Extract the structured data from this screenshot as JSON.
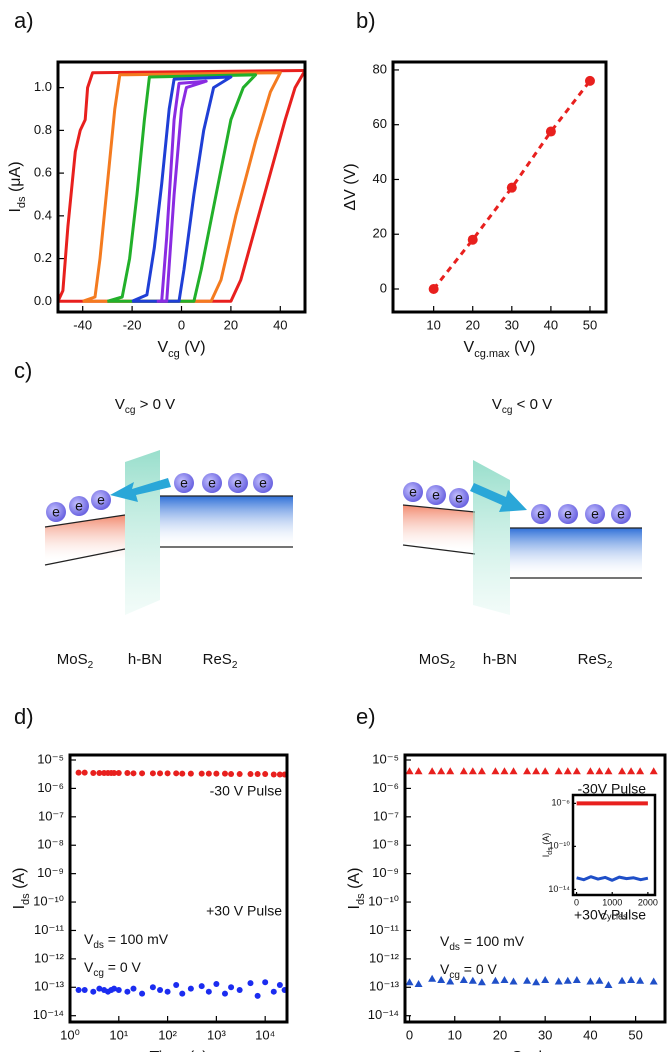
{
  "chart_data": [
    {
      "type": "line",
      "panel_label": "a)",
      "xlabel": {
        "main": "V",
        "sub": "cg",
        "rest": " (V)"
      },
      "ylabel": {
        "main": "I",
        "sub": "ds",
        "rest": " (μA)"
      },
      "xlim": [
        -50,
        50
      ],
      "xticks": [
        -40,
        -20,
        0,
        20,
        40
      ],
      "ylim": [
        -0.05,
        1.12
      ],
      "yticks": [
        {
          "value": 0,
          "label": "0.0"
        },
        0.2,
        0.4,
        0.6,
        0.8,
        {
          "value": 1,
          "label": "1.0"
        }
      ],
      "series": [
        {
          "color": "#e8201e",
          "x": [
            -50,
            20,
            24,
            30,
            36,
            42,
            46,
            50,
            -36,
            -38,
            -39,
            -41,
            -43,
            -46,
            -48,
            -50
          ],
          "values": [
            0,
            0,
            0.1,
            0.35,
            0.6,
            0.85,
            1.0,
            1.08,
            1.07,
            1.0,
            0.85,
            0.8,
            0.7,
            0.35,
            0.05,
            0
          ]
        },
        {
          "color": "#f47b20",
          "x": [
            -40,
            12,
            16,
            22,
            30,
            36,
            40,
            -25,
            -27,
            -30,
            -33,
            -35,
            -40
          ],
          "values": [
            0,
            0,
            0.1,
            0.4,
            0.75,
            0.98,
            1.07,
            1.06,
            0.9,
            0.55,
            0.2,
            0.02,
            0
          ]
        },
        {
          "color": "#22b02a",
          "x": [
            -30,
            5,
            8,
            14,
            20,
            25,
            30,
            -13,
            -15,
            -18,
            -21,
            -24,
            -30
          ],
          "values": [
            0,
            0,
            0.15,
            0.5,
            0.85,
            1.0,
            1.06,
            1.05,
            0.85,
            0.5,
            0.2,
            0.02,
            0
          ]
        },
        {
          "color": "#1f3fd6",
          "x": [
            -20,
            -1,
            1,
            5,
            9,
            13,
            20,
            -3,
            -5,
            -8,
            -11,
            -14,
            -20
          ],
          "values": [
            0,
            0,
            0.15,
            0.5,
            0.8,
            1.0,
            1.05,
            1.04,
            0.9,
            0.55,
            0.25,
            0.03,
            0
          ]
        },
        {
          "color": "#8a2be2",
          "x": [
            -10,
            -6,
            -3,
            0,
            2,
            10,
            -1,
            -3,
            -6,
            -8,
            -10
          ],
          "values": [
            0,
            0,
            0.5,
            0.9,
            1.0,
            1.03,
            1.02,
            0.85,
            0.3,
            0,
            0
          ]
        }
      ]
    },
    {
      "type": "scatter",
      "panel_label": "b)",
      "xlabel": {
        "main": "V",
        "sub": "cg.max",
        "rest": " (V)"
      },
      "ylabel": "ΔV (V)",
      "xlim": [
        -0.4,
        54.1
      ],
      "xticks": [
        10,
        20,
        30,
        40,
        50
      ],
      "ylim": [
        -8.4,
        82.9
      ],
      "yticks": [
        0,
        20,
        40,
        60,
        80
      ],
      "series": [
        {
          "color": "#e8201e",
          "line_style": "dashed",
          "marker": "circle",
          "x": [
            10,
            20,
            30,
            40,
            50
          ],
          "values": [
            0,
            18,
            37,
            57.5,
            76
          ]
        }
      ]
    },
    {
      "type": "scatter",
      "panel_label": "d)",
      "log_x": true,
      "log_y": true,
      "xlabel": "Time (s)",
      "ylabel": {
        "main": "I",
        "sub": "ds",
        "rest": " (A)"
      },
      "xlim": [
        1,
        28000
      ],
      "xticks": [
        {
          "value": 1,
          "label": "10⁰"
        },
        {
          "value": 10,
          "label": "10¹"
        },
        {
          "value": 100,
          "label": "10²"
        },
        {
          "value": 1000,
          "label": "10³"
        },
        {
          "value": 10000,
          "label": "10⁴"
        }
      ],
      "ylim": [
        6e-15,
        1.5e-05
      ],
      "yticks": [
        {
          "value": 1e-14,
          "label": "10⁻¹⁴"
        },
        {
          "value": 1e-13,
          "label": "10⁻¹³"
        },
        {
          "value": 1e-12,
          "label": "10⁻¹²"
        },
        {
          "value": 1e-11,
          "label": "10⁻¹¹"
        },
        {
          "value": 1e-10,
          "label": "10⁻¹⁰"
        },
        {
          "value": 1e-09,
          "label": "10⁻⁹"
        },
        {
          "value": 1e-08,
          "label": "10⁻⁸"
        },
        {
          "value": 1e-07,
          "label": "10⁻⁷"
        },
        {
          "value": 1e-06,
          "label": "10⁻⁶"
        },
        {
          "value": 1e-05,
          "label": "10⁻⁵"
        }
      ],
      "series": [
        {
          "color": "#e8201e",
          "marker": "circle",
          "x": [
            1.5,
            2,
            3,
            4,
            5,
            6,
            7,
            8,
            10,
            15,
            20,
            30,
            50,
            70,
            100,
            150,
            200,
            300,
            500,
            700,
            1000,
            1500,
            2000,
            3000,
            5000,
            7000,
            10000,
            15000,
            20000,
            25000
          ],
          "values": [
            3.6e-06,
            3.6e-06,
            3.5e-06,
            3.5e-06,
            3.5e-06,
            3.5e-06,
            3.5e-06,
            3.5e-06,
            3.5e-06,
            3.5e-06,
            3.4e-06,
            3.4e-06,
            3.4e-06,
            3.4e-06,
            3.4e-06,
            3.4e-06,
            3.3e-06,
            3.3e-06,
            3.3e-06,
            3.3e-06,
            3.3e-06,
            3.3e-06,
            3.2e-06,
            3.2e-06,
            3.2e-06,
            3.2e-06,
            3.2e-06,
            3.1e-06,
            3.1e-06,
            3.1e-06
          ]
        },
        {
          "color": "#1b2cf0",
          "marker": "circle",
          "x": [
            1.5,
            2,
            3,
            4,
            5,
            6,
            7,
            8,
            10,
            15,
            20,
            30,
            50,
            70,
            100,
            150,
            200,
            300,
            500,
            700,
            1000,
            1500,
            2000,
            3000,
            5000,
            7000,
            10000,
            15000,
            20000,
            25000
          ],
          "values": [
            8e-14,
            8e-14,
            7e-14,
            9e-14,
            8e-14,
            7e-14,
            8e-14,
            9e-14,
            8e-14,
            7e-14,
            9e-14,
            6e-14,
            1e-13,
            8e-14,
            7e-14,
            1.2e-13,
            6e-14,
            9e-14,
            1.1e-13,
            7e-14,
            1.3e-13,
            6e-14,
            1e-13,
            8e-14,
            1.4e-13,
            5e-14,
            1.5e-13,
            7e-14,
            1.2e-13,
            8e-14
          ]
        }
      ],
      "annotations": [
        {
          "color": "#e8201e",
          "text": "-30 V Pulse"
        },
        {
          "color": "#1b2cf0",
          "text": "+30 V Pulse"
        },
        {
          "color": "#111111",
          "text": {
            "main": "V",
            "sub": "ds",
            "rest": " = 100 mV"
          }
        },
        {
          "color": "#111111",
          "text": {
            "main": "V",
            "sub": "cg",
            "rest": " = 0 V"
          }
        }
      ]
    },
    {
      "type": "scatter",
      "panel_label": "e)",
      "log_y": true,
      "xlabel": "Cycles",
      "ylabel": {
        "main": "I",
        "sub": "ds",
        "rest": " (A)"
      },
      "xlim": [
        -1,
        56.5
      ],
      "xticks": [
        0,
        10,
        20,
        30,
        40,
        50
      ],
      "ylim": [
        6e-15,
        1.5e-05
      ],
      "yticks": [
        {
          "value": 1e-14,
          "label": "10⁻¹⁴"
        },
        {
          "value": 1e-13,
          "label": "10⁻¹³"
        },
        {
          "value": 1e-12,
          "label": "10⁻¹²"
        },
        {
          "value": 1e-11,
          "label": "10⁻¹¹"
        },
        {
          "value": 1e-10,
          "label": "10⁻¹⁰"
        },
        {
          "value": 1e-09,
          "label": "10⁻⁹"
        },
        {
          "value": 1e-08,
          "label": "10⁻⁸"
        },
        {
          "value": 1e-07,
          "label": "10⁻⁷"
        },
        {
          "value": 1e-06,
          "label": "10⁻⁶"
        },
        {
          "value": 1e-05,
          "label": "10⁻⁵"
        }
      ],
      "series": [
        {
          "color": "#e8201e",
          "marker": "triangle",
          "x": [
            0,
            2,
            5,
            7,
            9,
            12,
            14,
            16,
            19,
            21,
            23,
            26,
            28,
            30,
            33,
            35,
            37,
            40,
            42,
            44,
            47,
            49,
            51,
            54
          ],
          "values": [
            4e-06,
            4e-06,
            4e-06,
            4e-06,
            4e-06,
            4e-06,
            4e-06,
            4e-06,
            4e-06,
            4e-06,
            4e-06,
            4e-06,
            4e-06,
            4e-06,
            4e-06,
            4e-06,
            4e-06,
            4e-06,
            4e-06,
            4e-06,
            4e-06,
            4e-06,
            4e-06,
            4e-06
          ]
        },
        {
          "color": "#1f4fc8",
          "marker": "triangle",
          "x": [
            0,
            2,
            5,
            7,
            9,
            12,
            14,
            16,
            19,
            21,
            23,
            26,
            28,
            30,
            33,
            35,
            37,
            40,
            42,
            44,
            47,
            49,
            51,
            54
          ],
          "values": [
            1.5e-13,
            1.3e-13,
            2e-13,
            1.8e-13,
            1.6e-13,
            1.8e-13,
            1.7e-13,
            1.5e-13,
            1.7e-13,
            1.8e-13,
            1.6e-13,
            1.7e-13,
            1.5e-13,
            1.8e-13,
            1.6e-13,
            1.7e-13,
            1.8e-13,
            1.6e-13,
            1.7e-13,
            1.2e-13,
            1.7e-13,
            1.8e-13,
            1.7e-13,
            1.6e-13
          ]
        }
      ],
      "annotations": [
        {
          "color": "#e8201e",
          "text": "-30V Pulse"
        },
        {
          "color": "#1f4fc8",
          "text": "+30V Pulse"
        },
        {
          "color": "#111111",
          "text": {
            "main": "V",
            "sub": "ds",
            "rest": " = 100 mV"
          }
        },
        {
          "color": "#111111",
          "text": {
            "main": "V",
            "sub": "cg",
            "rest": " = 0 V"
          }
        }
      ]
    },
    {
      "type": "line",
      "inset": true,
      "log_y": true,
      "xlabel": "Cycles",
      "ylabel": {
        "main": "I",
        "sub": "ds",
        "rest": " (A)"
      },
      "xlim": [
        -100,
        2200
      ],
      "xticks": [
        0,
        1000,
        2000
      ],
      "ylim": [
        3e-15,
        6e-06
      ],
      "yticks": [
        {
          "value": 1e-14,
          "label": "10⁻¹⁴"
        },
        {
          "value": 1e-10,
          "label": "10⁻¹⁰"
        },
        {
          "value": 1e-06,
          "label": "10⁻⁶"
        }
      ],
      "series": [
        {
          "color": "#e8201e",
          "x": [
            0,
            200,
            400,
            600,
            800,
            1000,
            1200,
            1400,
            1600,
            1800,
            2000
          ],
          "values": [
            1e-06,
            1e-06,
            1e-06,
            1e-06,
            1e-06,
            1e-06,
            1e-06,
            1e-06,
            1e-06,
            1e-06,
            1e-06
          ]
        },
        {
          "color": "#1f4fc8",
          "x": [
            0,
            200,
            400,
            600,
            800,
            1000,
            1200,
            1400,
            1600,
            1800,
            2000
          ],
          "values": [
            1.2e-13,
            8e-14,
            1.5e-13,
            9e-14,
            1.3e-13,
            7e-14,
            1.4e-13,
            1e-13,
            1.2e-13,
            8e-14,
            1.1e-13
          ]
        }
      ]
    }
  ],
  "diagram": {
    "panel_label": "c)",
    "electron": "e",
    "left": {
      "condition": {
        "main": "V",
        "sub": "cg",
        "rest": " > 0 V"
      },
      "layers": [
        {
          "main": "MoS",
          "sub": "2"
        },
        {
          "main": "h-BN"
        },
        {
          "main": "ReS",
          "sub": "2"
        }
      ]
    },
    "right": {
      "condition": {
        "main": "V",
        "sub": "cg",
        "rest": " < 0 V"
      },
      "layers": [
        {
          "main": "MoS",
          "sub": "2"
        },
        {
          "main": "h-BN"
        },
        {
          "main": "ReS",
          "sub": "2"
        }
      ]
    }
  }
}
